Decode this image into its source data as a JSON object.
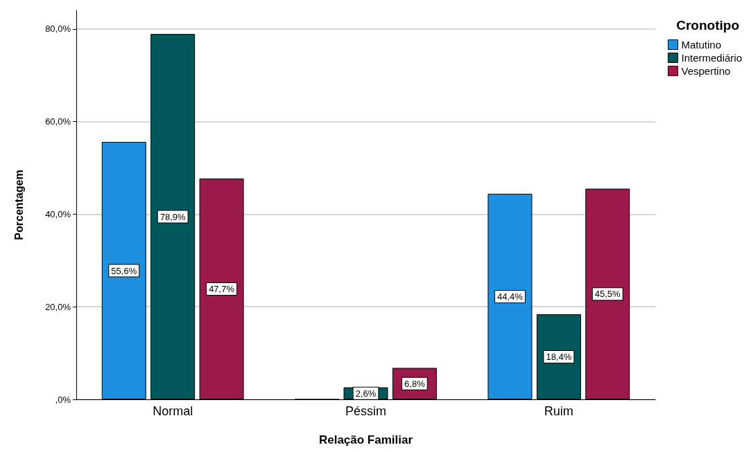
{
  "chart_data": {
    "type": "bar",
    "xlabel": "Relação Familiar",
    "ylabel": "Porcentagem",
    "legend_title": "Cronotipo",
    "categories": [
      "Normal",
      "Péssim",
      "Ruim"
    ],
    "series": [
      {
        "name": "Matutino",
        "color": "#1f8fe0",
        "values": [
          55.6,
          0,
          44.4
        ],
        "value_labels": [
          "55,6%",
          null,
          "44,4%"
        ]
      },
      {
        "name": "Intermediário",
        "color": "#00585a",
        "values": [
          78.9,
          2.6,
          18.4
        ],
        "value_labels": [
          "78,9%",
          "2,6%",
          "18,4%"
        ]
      },
      {
        "name": "Vespertino",
        "color": "#9b1a4b",
        "values": [
          47.7,
          6.8,
          45.5
        ],
        "value_labels": [
          "47,7%",
          "6,8%",
          "45,5%"
        ]
      }
    ],
    "ylim": [
      0,
      84
    ],
    "yticks": [
      {
        "value": 0,
        "label": ",0%"
      },
      {
        "value": 20,
        "label": "20,0%"
      },
      {
        "value": 40,
        "label": "40,0%"
      },
      {
        "value": 60,
        "label": "60,0%"
      },
      {
        "value": 80,
        "label": "80,0%"
      }
    ],
    "grid": "y",
    "legend": "top right"
  }
}
